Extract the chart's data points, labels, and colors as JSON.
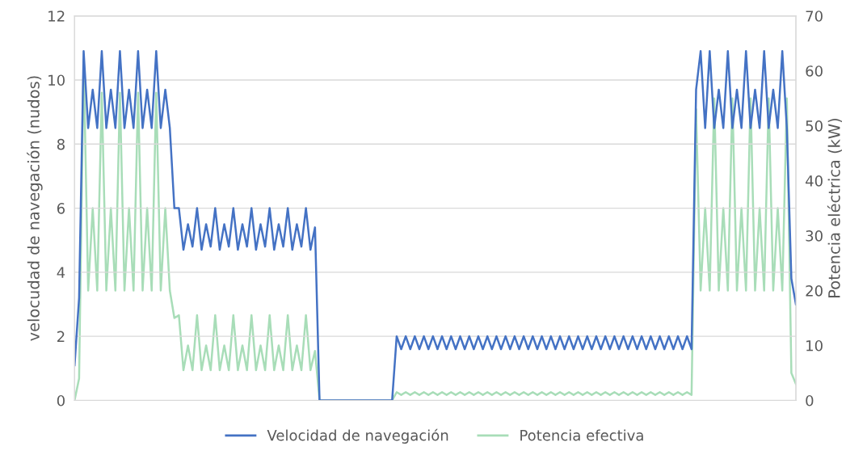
{
  "chart_data": {
    "type": "line",
    "ylabel": "velocudad de navegación (nudos)",
    "y2label": "Potencia eléctrica (kW)",
    "categories": [
      null,
      null,
      null,
      null,
      null,
      null,
      null,
      null,
      null,
      null,
      null,
      null,
      null,
      null,
      null,
      null,
      null,
      null,
      null,
      null,
      null,
      null,
      null,
      null,
      null,
      null,
      null,
      null,
      null,
      null,
      null,
      null,
      null,
      null,
      null,
      null,
      null,
      null,
      null,
      null,
      null,
      null,
      null,
      null,
      null,
      null,
      null,
      null,
      null,
      null,
      null,
      null,
      null,
      null,
      null,
      null,
      null,
      null,
      null,
      null,
      null,
      null,
      null,
      null,
      null,
      null,
      null,
      null,
      null,
      null,
      null,
      null,
      null,
      null,
      null,
      null,
      null,
      null,
      null,
      null,
      null,
      null,
      null,
      null,
      null,
      null,
      null,
      null,
      null,
      null,
      null,
      null,
      null,
      null,
      null,
      null,
      null,
      null,
      null,
      null,
      null,
      null,
      null,
      null,
      null,
      null,
      null,
      null,
      null,
      null,
      null,
      null,
      null,
      null,
      null,
      null,
      null,
      null,
      null,
      null,
      null,
      null,
      null,
      null,
      null,
      null,
      null,
      null,
      null,
      null,
      null,
      null,
      null,
      null,
      null,
      null,
      null,
      null,
      null,
      null,
      null,
      null,
      null,
      null,
      null,
      null,
      null,
      null,
      null,
      null,
      null,
      null,
      null,
      null,
      null,
      null,
      null,
      null,
      null,
      null
    ],
    "series": [
      {
        "name": "Velocidad de navegación",
        "color": "#4472c4",
        "axis": "y",
        "values": [
          1.1,
          3.2,
          10.9,
          8.5,
          9.7,
          8.5,
          10.9,
          8.5,
          9.7,
          8.5,
          10.9,
          8.5,
          9.7,
          8.5,
          10.9,
          8.5,
          9.7,
          8.5,
          10.9,
          8.5,
          9.7,
          8.5,
          6.0,
          6.0,
          4.7,
          5.5,
          4.8,
          6.0,
          4.7,
          5.5,
          4.8,
          6.0,
          4.7,
          5.5,
          4.8,
          6.0,
          4.7,
          5.5,
          4.8,
          6.0,
          4.7,
          5.5,
          4.8,
          6.0,
          4.7,
          5.5,
          4.8,
          6.0,
          4.7,
          5.5,
          4.8,
          6.0,
          4.7,
          5.4,
          0,
          0,
          0,
          0,
          0,
          0,
          0,
          0,
          0,
          0,
          0,
          0,
          0,
          0,
          0,
          0,
          0,
          2.0,
          1.6,
          2.0,
          1.6,
          2.0,
          1.6,
          2.0,
          1.6,
          2.0,
          1.6,
          2.0,
          1.6,
          2.0,
          1.6,
          2.0,
          1.6,
          2.0,
          1.6,
          2.0,
          1.6,
          2.0,
          1.6,
          2.0,
          1.6,
          2.0,
          1.6,
          2.0,
          1.6,
          2.0,
          1.6,
          2.0,
          1.6,
          2.0,
          1.6,
          2.0,
          1.6,
          2.0,
          1.6,
          2.0,
          1.6,
          2.0,
          1.6,
          2.0,
          1.6,
          2.0,
          1.6,
          2.0,
          1.6,
          2.0,
          1.6,
          2.0,
          1.6,
          2.0,
          1.6,
          2.0,
          1.6,
          2.0,
          1.6,
          2.0,
          1.6,
          2.0,
          1.6,
          2.0,
          1.6,
          2.0,
          1.6,
          9.7,
          10.9,
          8.5,
          10.9,
          8.5,
          9.7,
          8.5,
          10.9,
          8.5,
          9.7,
          8.5,
          10.9,
          8.5,
          9.7,
          8.5,
          10.9,
          8.5,
          9.7,
          8.5,
          10.9,
          8.5,
          3.8,
          3.0
        ]
      },
      {
        "name": "Potencia efectiva",
        "color": "#a8ddb8",
        "axis": "y2",
        "values": [
          0,
          4,
          62,
          20,
          35,
          20,
          56,
          20,
          35,
          20,
          56,
          20,
          35,
          20,
          56,
          20,
          35,
          20,
          56,
          20,
          35,
          20,
          15,
          15.5,
          5.5,
          10,
          5.5,
          15.5,
          5.5,
          10,
          5.5,
          15.5,
          5.5,
          10,
          5.5,
          15.5,
          5.5,
          10,
          5.5,
          15.5,
          5.5,
          10,
          5.5,
          15.5,
          5.5,
          10,
          5.5,
          15.5,
          5.5,
          10,
          5.5,
          15.5,
          5.5,
          9,
          0,
          0,
          0,
          0,
          0,
          0,
          0,
          0,
          0,
          0,
          0,
          0,
          0,
          0,
          0,
          0,
          0,
          1.5,
          1.0,
          1.5,
          1.0,
          1.5,
          1.0,
          1.5,
          1.0,
          1.5,
          1.0,
          1.5,
          1.0,
          1.5,
          1.0,
          1.5,
          1.0,
          1.5,
          1.0,
          1.5,
          1.0,
          1.5,
          1.0,
          1.5,
          1.0,
          1.5,
          1.0,
          1.5,
          1.0,
          1.5,
          1.0,
          1.5,
          1.0,
          1.5,
          1.0,
          1.5,
          1.0,
          1.5,
          1.0,
          1.5,
          1.0,
          1.5,
          1.0,
          1.5,
          1.0,
          1.5,
          1.0,
          1.5,
          1.0,
          1.5,
          1.0,
          1.5,
          1.0,
          1.5,
          1.0,
          1.5,
          1.0,
          1.5,
          1.0,
          1.5,
          1.0,
          1.5,
          1.0,
          1.5,
          1.0,
          1.5,
          1.0,
          53,
          20,
          35,
          20,
          55,
          20,
          35,
          20,
          55,
          20,
          35,
          20,
          55,
          20,
          35,
          20,
          55,
          20,
          35,
          20,
          55,
          5,
          3
        ]
      }
    ],
    "ylim": [
      0,
      12
    ],
    "yticks": [
      0,
      2,
      4,
      6,
      8,
      10,
      12
    ],
    "y2lim": [
      0,
      70
    ],
    "y2ticks": [
      0,
      10,
      20,
      30,
      40,
      50,
      60,
      70
    ],
    "grid": "y",
    "legend": "bottom",
    "marker": "none",
    "line_style": "solid"
  }
}
